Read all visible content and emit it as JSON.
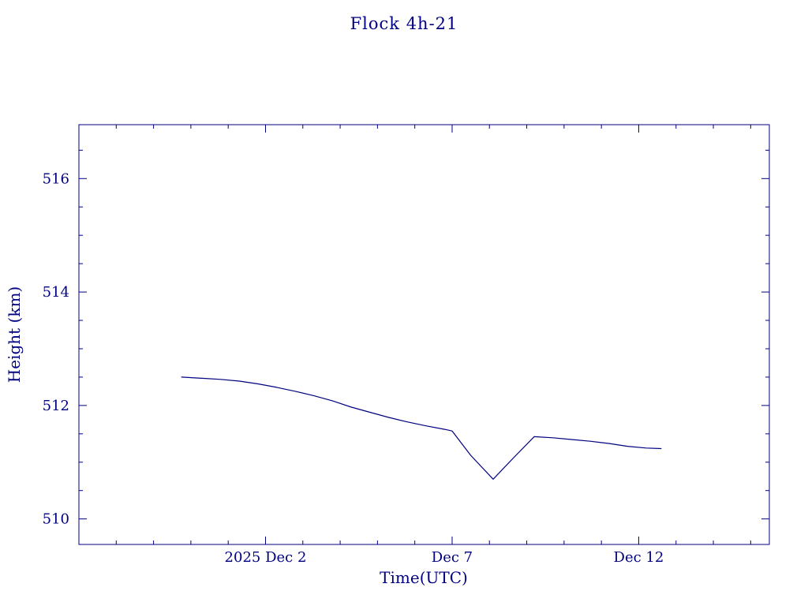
{
  "page": {
    "background": "#ffffff",
    "accent_color": "#000080"
  },
  "chart_data": {
    "type": "line",
    "title": "Flock 4h-21",
    "xlabel": "Time(UTC)",
    "ylabel": "Height (km)",
    "line_color": "#000080",
    "legend": "none",
    "grid": false,
    "x_unit": "decimal day of 2025 December (0 = Nov 30)",
    "x": [
      -0.25,
      0.3,
      0.8,
      1.3,
      1.8,
      2.3,
      2.8,
      3.3,
      3.8,
      4.3,
      4.8,
      5.3,
      5.8,
      6.3,
      6.8,
      7.0,
      7.5,
      8.1,
      8.65,
      9.2,
      9.7,
      10.2,
      10.7,
      11.2,
      11.7,
      12.2,
      12.6
    ],
    "y": [
      512.5,
      512.48,
      512.46,
      512.43,
      512.38,
      512.32,
      512.25,
      512.17,
      512.08,
      511.97,
      511.88,
      511.79,
      511.71,
      511.64,
      511.58,
      511.55,
      511.12,
      510.7,
      511.08,
      511.45,
      511.43,
      511.4,
      511.37,
      511.33,
      511.28,
      511.25,
      511.24
    ],
    "xlim": [
      -3,
      15.5
    ],
    "ylim": [
      509.55,
      516.95
    ],
    "x_major_ticks": [
      {
        "value": 2,
        "label": "2025 Dec 2"
      },
      {
        "value": 7,
        "label": "Dec 7"
      },
      {
        "value": 12,
        "label": "Dec 12"
      }
    ],
    "y_major_ticks": [
      {
        "value": 510,
        "label": "510"
      },
      {
        "value": 512,
        "label": "512"
      },
      {
        "value": 514,
        "label": "514"
      },
      {
        "value": 516,
        "label": "516"
      }
    ],
    "x_minor_step": 1,
    "y_minor_step": 0.5
  }
}
